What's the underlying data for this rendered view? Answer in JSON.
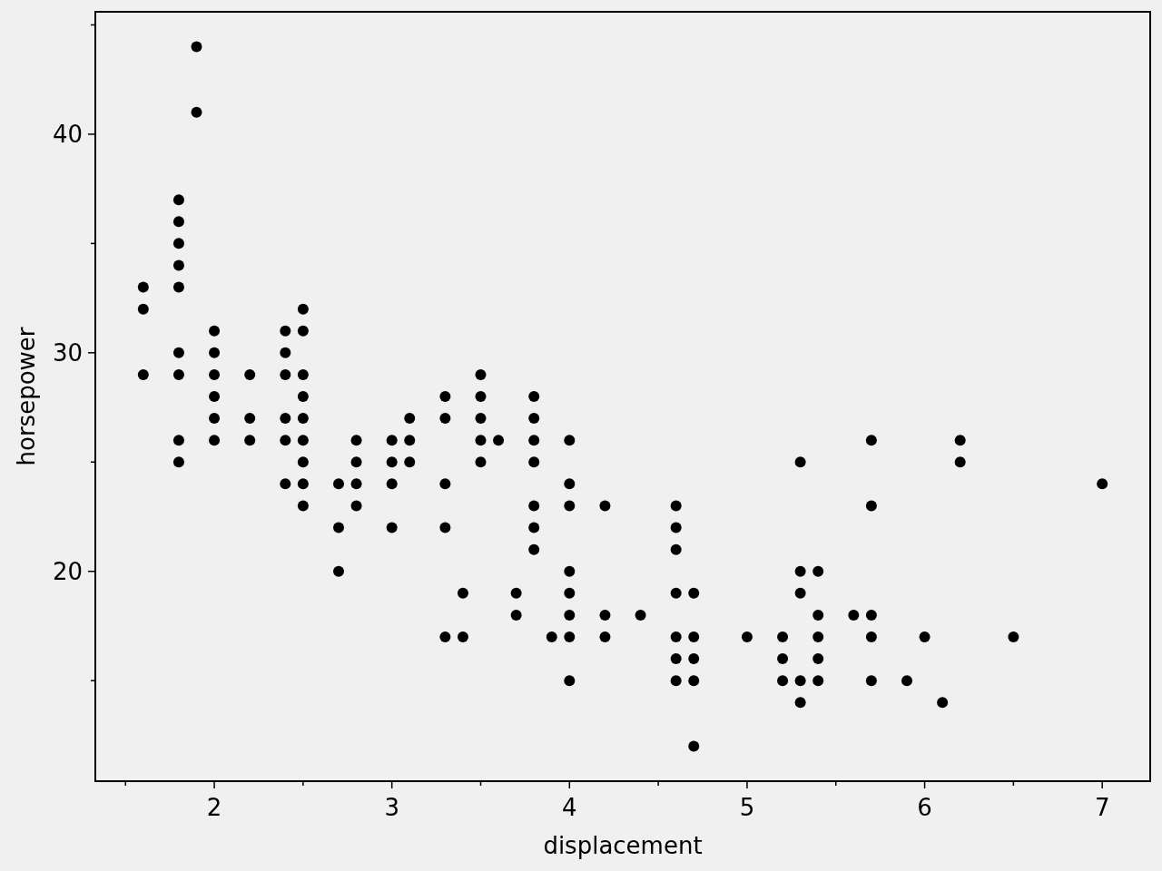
{
  "chart_data": {
    "type": "scatter",
    "xlabel": "displacement",
    "ylabel": "horsepower",
    "marker": "circle",
    "grid": false,
    "xlim": [
      1.33,
      7.27
    ],
    "ylim": [
      10.4,
      45.6
    ],
    "xticks": [
      {
        "value": 1.5,
        "label": null
      },
      2,
      {
        "value": 2.5,
        "label": null
      },
      3,
      {
        "value": 3.5,
        "label": null
      },
      4,
      {
        "value": 4.5,
        "label": null
      },
      5,
      {
        "value": 5.5,
        "label": null
      },
      6,
      {
        "value": 6.5,
        "label": null
      },
      7
    ],
    "yticks": [
      {
        "value": 15,
        "label": null
      },
      20,
      {
        "value": 25,
        "label": null
      },
      30,
      {
        "value": 35,
        "label": null
      },
      40,
      {
        "value": 45,
        "label": null
      }
    ],
    "series": [
      {
        "color": "#000000",
        "x": [
          1.6,
          1.6,
          1.6,
          1.8,
          1.8,
          1.8,
          1.8,
          1.8,
          1.8,
          1.8,
          1.8,
          1.8,
          1.9,
          1.9,
          2.0,
          2.0,
          2.0,
          2.0,
          2.0,
          2.0,
          2.2,
          2.2,
          2.2,
          2.4,
          2.4,
          2.4,
          2.4,
          2.4,
          2.4,
          2.5,
          2.5,
          2.5,
          2.5,
          2.5,
          2.5,
          2.5,
          2.5,
          2.5,
          2.7,
          2.7,
          2.7,
          2.8,
          2.8,
          2.8,
          2.8,
          3.0,
          3.0,
          3.0,
          3.0,
          3.1,
          3.1,
          3.1,
          3.3,
          3.3,
          3.3,
          3.3,
          3.3,
          3.4,
          3.4,
          3.5,
          3.5,
          3.5,
          3.5,
          3.5,
          3.6,
          3.7,
          3.7,
          3.8,
          3.8,
          3.8,
          3.8,
          3.8,
          3.8,
          3.8,
          3.9,
          4.0,
          4.0,
          4.0,
          4.0,
          4.0,
          4.0,
          4.0,
          4.0,
          4.2,
          4.2,
          4.2,
          4.4,
          4.6,
          4.6,
          4.6,
          4.6,
          4.6,
          4.6,
          4.6,
          4.7,
          4.7,
          4.7,
          4.7,
          4.7,
          5.0,
          5.2,
          5.2,
          5.2,
          5.3,
          5.3,
          5.3,
          5.3,
          5.3,
          5.4,
          5.4,
          5.4,
          5.4,
          5.4,
          5.6,
          5.7,
          5.7,
          5.7,
          5.7,
          5.7,
          5.9,
          6.0,
          6.1,
          6.2,
          6.2,
          6.5,
          7.0
        ],
        "values": [
          33,
          32,
          29,
          37,
          36,
          35,
          34,
          33,
          30,
          29,
          26,
          25,
          44,
          41,
          31,
          30,
          29,
          28,
          27,
          26,
          29,
          27,
          26,
          31,
          30,
          29,
          27,
          26,
          24,
          32,
          31,
          29,
          28,
          27,
          26,
          25,
          24,
          23,
          24,
          22,
          20,
          26,
          25,
          24,
          23,
          26,
          25,
          24,
          22,
          27,
          26,
          25,
          28,
          27,
          24,
          22,
          17,
          19,
          17,
          29,
          28,
          27,
          26,
          25,
          26,
          19,
          18,
          28,
          27,
          26,
          25,
          23,
          22,
          21,
          17,
          26,
          24,
          23,
          20,
          19,
          18,
          17,
          15,
          23,
          18,
          17,
          18,
          23,
          22,
          21,
          19,
          17,
          16,
          15,
          19,
          17,
          16,
          15,
          12,
          17,
          17,
          16,
          15,
          25,
          20,
          19,
          15,
          14,
          20,
          18,
          17,
          16,
          15,
          18,
          26,
          23,
          18,
          17,
          15,
          15,
          17,
          14,
          26,
          25,
          17,
          24
        ]
      }
    ]
  }
}
